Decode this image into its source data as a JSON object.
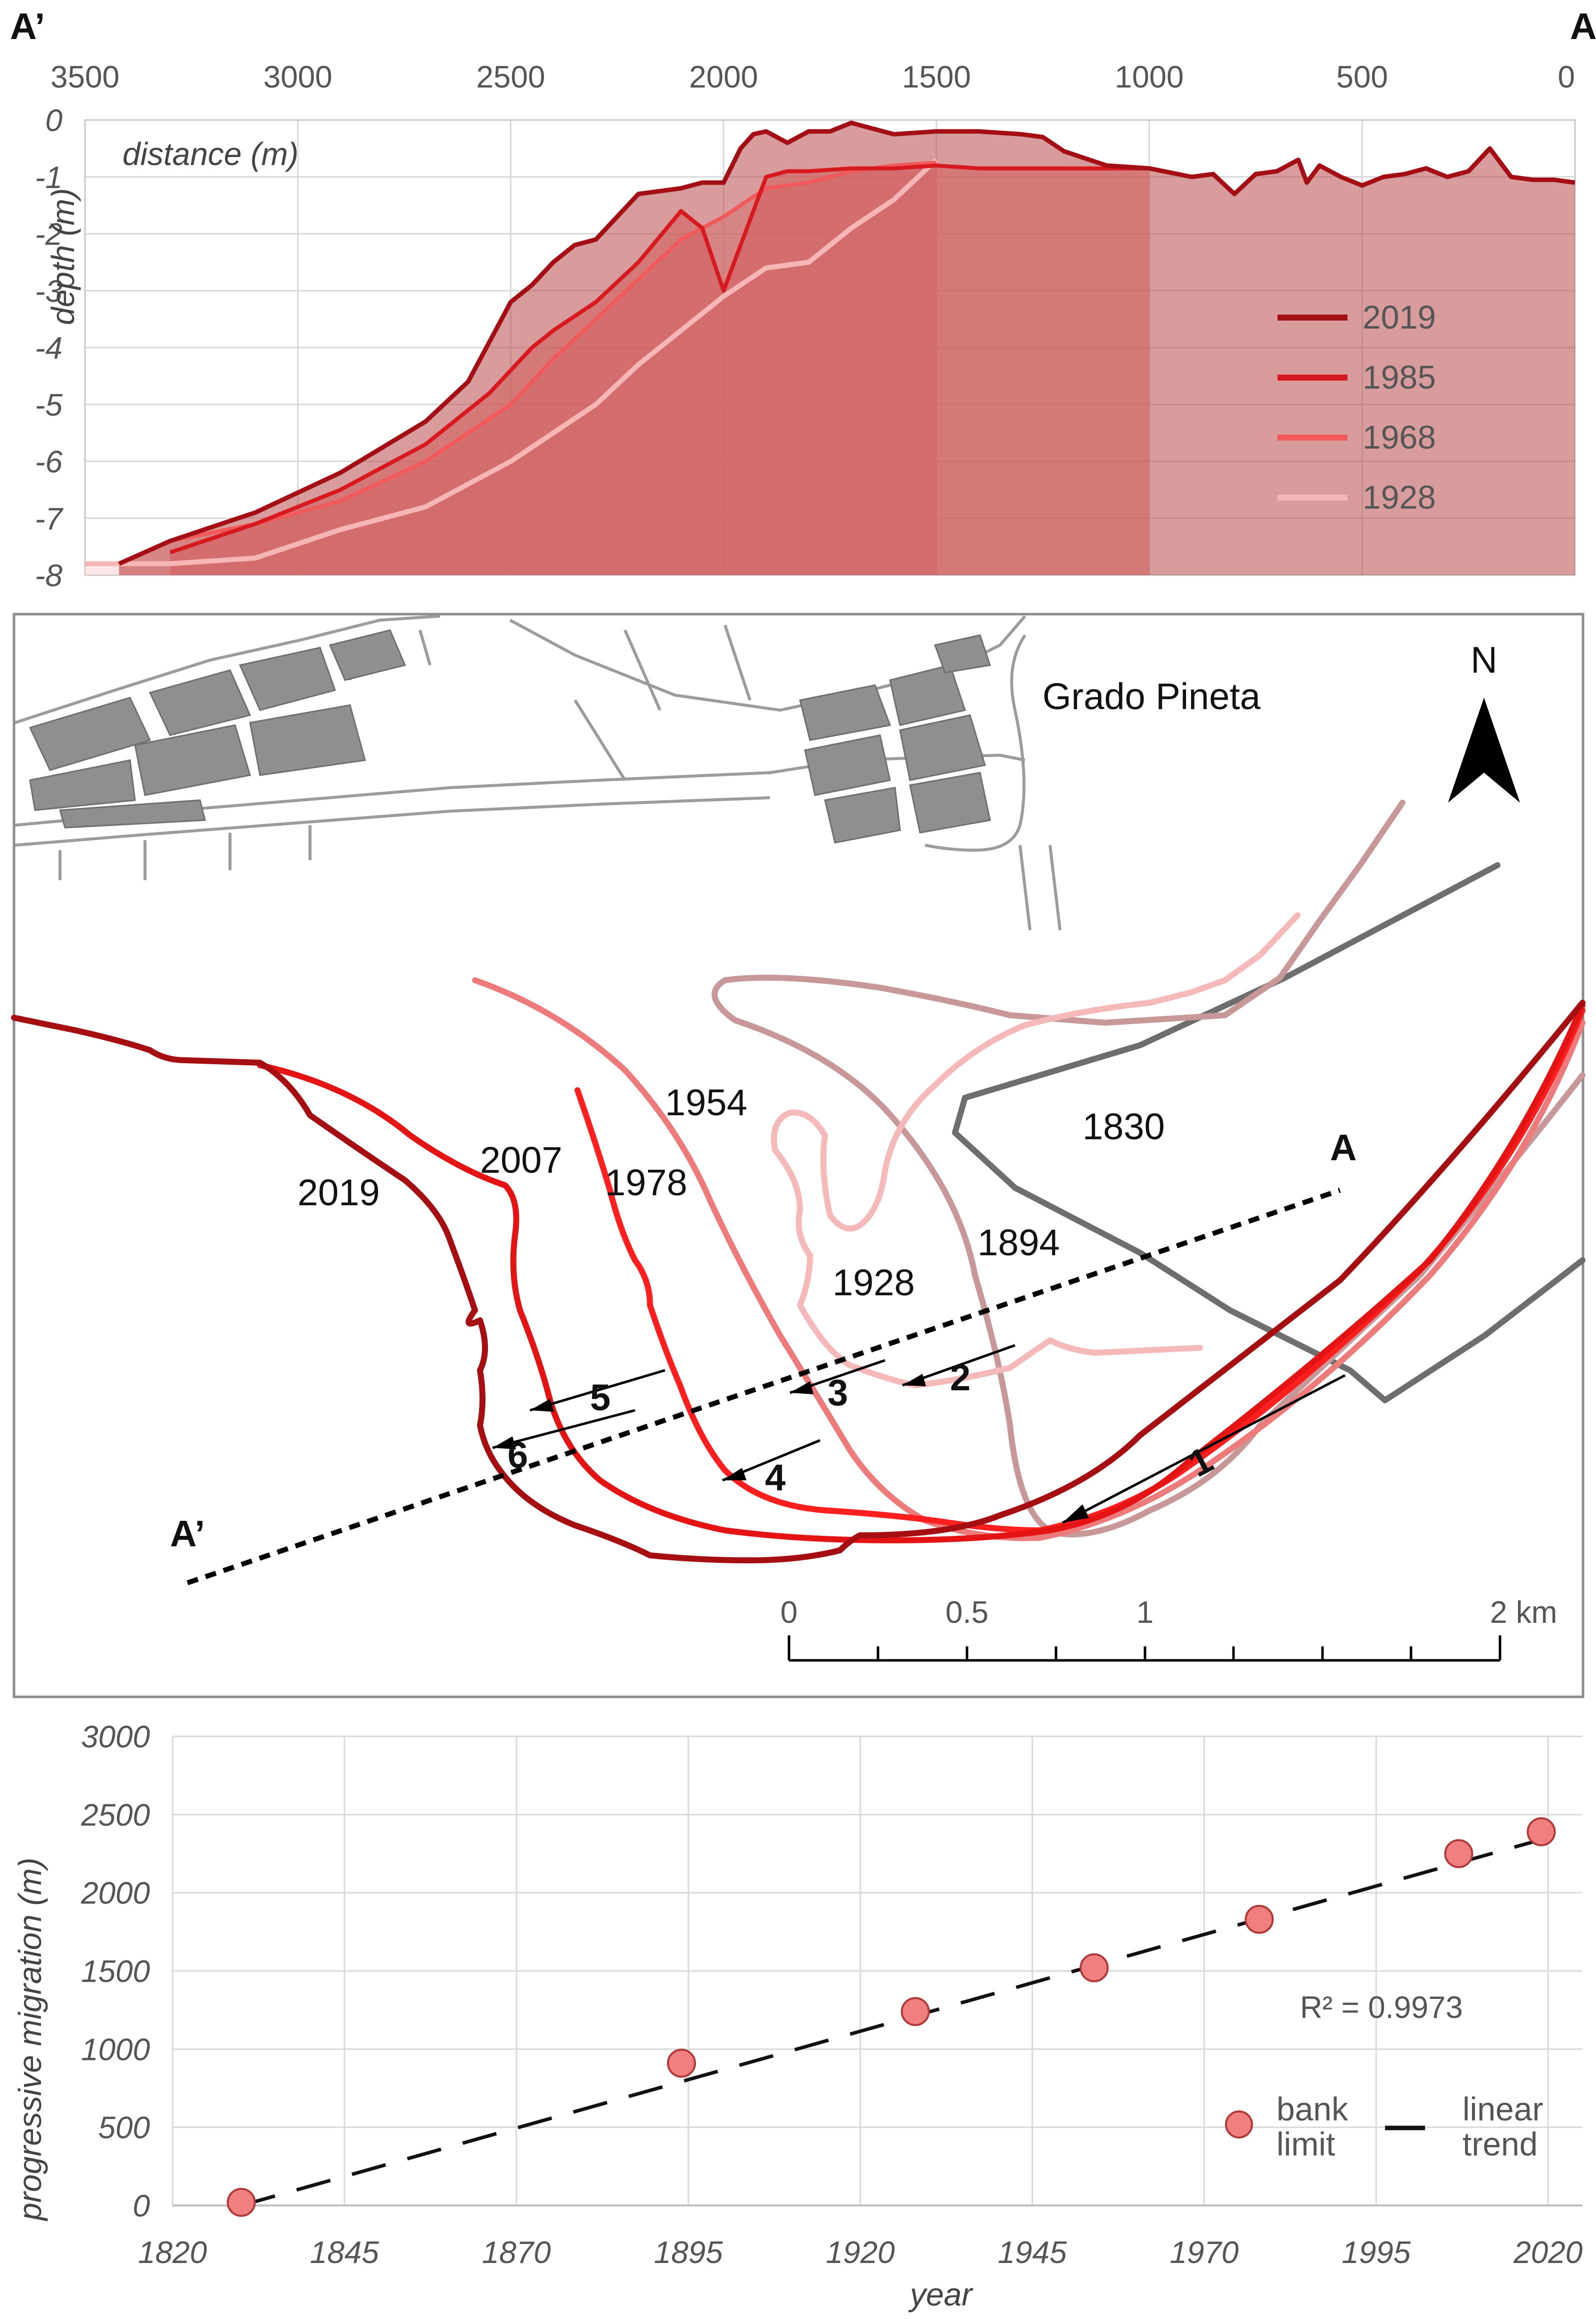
{
  "chart_data": [
    {
      "type": "area",
      "end_labels": {
        "left": "A’",
        "right": "A"
      },
      "xlabel": "distance (m)",
      "ylabel": "depth (m)",
      "x_ticks": [
        "3500",
        "3000",
        "2500",
        "2000",
        "1500",
        "1000",
        "500",
        "0"
      ],
      "y_ticks": [
        "0",
        "-1",
        "-2",
        "-3",
        "-4",
        "-5",
        "-6",
        "-7",
        "-8"
      ],
      "xlim": [
        3500,
        0
      ],
      "ylim": [
        -8,
        0
      ],
      "grid": true,
      "legend_position": "right",
      "series": [
        {
          "name": "2019",
          "color": "#a30f14",
          "x": [
            3420,
            3300,
            3100,
            2900,
            2700,
            2600,
            2550,
            2500,
            2450,
            2400,
            2350,
            2300,
            2250,
            2200,
            2100,
            2050,
            2000,
            1960,
            1930,
            1900,
            1850,
            1800,
            1750,
            1700,
            1600,
            1500,
            1400,
            1300,
            1250,
            1200,
            1100,
            1000,
            900,
            850,
            800,
            750,
            700,
            650,
            630,
            600,
            550,
            500,
            450,
            400,
            350,
            300,
            250,
            200,
            150,
            100,
            50,
            0
          ],
          "y": [
            -7.8,
            -7.4,
            -6.9,
            -6.2,
            -5.3,
            -4.6,
            -3.9,
            -3.2,
            -2.9,
            -2.5,
            -2.2,
            -2.1,
            -1.7,
            -1.3,
            -1.2,
            -1.1,
            -1.1,
            -0.5,
            -0.25,
            -0.2,
            -0.4,
            -0.2,
            -0.2,
            -0.05,
            -0.25,
            -0.2,
            -0.2,
            -0.25,
            -0.3,
            -0.55,
            -0.8,
            -0.85,
            -1.0,
            -0.95,
            -1.3,
            -0.95,
            -0.9,
            -0.7,
            -1.1,
            -0.8,
            -1.0,
            -1.15,
            -1.0,
            -0.95,
            -0.85,
            -1.0,
            -0.9,
            -0.5,
            -1.0,
            -1.05,
            -1.05,
            -1.1
          ]
        },
        {
          "name": "1985",
          "color": "#d71920",
          "x": [
            3300,
            3100,
            2900,
            2700,
            2600,
            2550,
            2500,
            2450,
            2400,
            2300,
            2200,
            2100,
            2050,
            2000,
            1950,
            1900,
            1850,
            1800,
            1700,
            1600,
            1500,
            1400,
            1300,
            1200,
            1100,
            1000
          ],
          "y": [
            -7.6,
            -7.1,
            -6.5,
            -5.7,
            -5.1,
            -4.8,
            -4.4,
            -4.0,
            -3.7,
            -3.2,
            -2.5,
            -1.6,
            -1.9,
            -3.0,
            -2.0,
            -1.0,
            -0.9,
            -0.9,
            -0.85,
            -0.85,
            -0.8,
            -0.85,
            -0.85,
            -0.85,
            -0.85,
            -0.85
          ]
        },
        {
          "name": "1968",
          "color": "#f05a5a",
          "x": [
            3420,
            3300,
            3100,
            2900,
            2700,
            2600,
            2500,
            2400,
            2300,
            2200,
            2100,
            2000,
            1900,
            1800,
            1700,
            1600,
            1500
          ],
          "y": [
            -7.8,
            -7.4,
            -7.1,
            -6.7,
            -6.0,
            -5.5,
            -5.0,
            -4.2,
            -3.5,
            -2.8,
            -2.1,
            -1.7,
            -1.2,
            -1.1,
            -0.9,
            -0.8,
            -0.75
          ]
        },
        {
          "name": "1928",
          "color": "#f7b6b6",
          "x": [
            3500,
            3300,
            3100,
            2900,
            2700,
            2600,
            2500,
            2400,
            2300,
            2200,
            2100,
            2000,
            1900,
            1800,
            1700,
            1600,
            1500
          ],
          "y": [
            -7.8,
            -7.8,
            -7.7,
            -7.2,
            -6.8,
            -6.4,
            -6.0,
            -5.5,
            -5.0,
            -4.3,
            -3.7,
            -3.1,
            -2.6,
            -2.5,
            -1.9,
            -1.4,
            -0.7
          ]
        }
      ]
    },
    {
      "type": "map",
      "place_label": "Grado Pineta",
      "north_label": "N",
      "year_labels": [
        "1830",
        "1894",
        "1928",
        "1954",
        "1978",
        "2007",
        "2019"
      ],
      "arrow_labels": [
        "1",
        "2",
        "3",
        "4",
        "5",
        "6"
      ],
      "section_labels": {
        "start": "A’",
        "end": "A"
      },
      "scale": {
        "ticks": [
          "0",
          "0.5",
          "1",
          "2 km"
        ]
      }
    },
    {
      "type": "scatter",
      "xlabel": "year",
      "ylabel": "progressive migration (m)",
      "x_ticks": [
        "1820",
        "1845",
        "1870",
        "1895",
        "1920",
        "1945",
        "1970",
        "1995",
        "2020"
      ],
      "y_ticks": [
        "0",
        "500",
        "1000",
        "1500",
        "2000",
        "2500",
        "3000"
      ],
      "xlim": [
        1820,
        2025
      ],
      "ylim": [
        0,
        3000
      ],
      "grid": true,
      "series": [
        {
          "name": "bank limit",
          "color": "#f08080",
          "x": [
            1830,
            1894,
            1928,
            1954,
            1978,
            2007,
            2019
          ],
          "y": [
            20,
            910,
            1240,
            1520,
            1830,
            2250,
            2390
          ]
        },
        {
          "name": "linear trend",
          "color": "#111111",
          "style": "dashed",
          "x": [
            1830,
            2019
          ],
          "y": [
            0,
            2340
          ]
        }
      ],
      "annotation": "R² = 0.9973",
      "legend": {
        "bank": [
          "bank",
          "limit"
        ],
        "trend": [
          "linear",
          "trend"
        ]
      }
    }
  ]
}
